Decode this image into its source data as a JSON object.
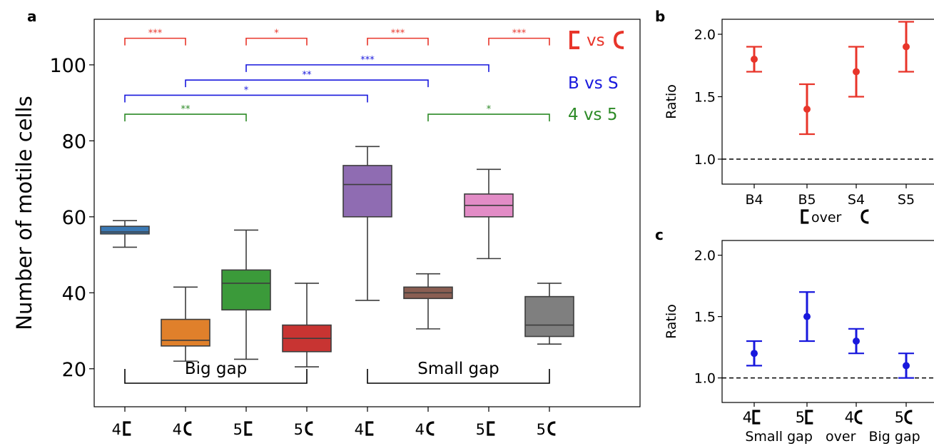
{
  "colors": {
    "shape_cmp": "#e8352a",
    "gap_cmp": "#1818dd",
    "size_cmp": "#2c8a26",
    "box_fills": [
      "#3b79b4",
      "#e0802b",
      "#3b9a3a",
      "#c83432",
      "#8f6cb2",
      "#8a5e52",
      "#e28cc6",
      "#7f7f7f"
    ]
  },
  "panel_labels": {
    "a": "a",
    "b": "b",
    "c": "c"
  },
  "chart_data": [
    {
      "type": "box",
      "panel": "a",
      "ylabel": "Number of motile cells",
      "ylim": [
        10,
        112
      ],
      "yticks": [
        20,
        40,
        60,
        80,
        100
      ],
      "categories": [
        {
          "num": "4",
          "shape": "bracket"
        },
        {
          "num": "4",
          "shape": "c"
        },
        {
          "num": "5",
          "shape": "bracket"
        },
        {
          "num": "5",
          "shape": "c"
        },
        {
          "num": "4",
          "shape": "bracket"
        },
        {
          "num": "4",
          "shape": "c"
        },
        {
          "num": "5",
          "shape": "bracket"
        },
        {
          "num": "5",
          "shape": "c"
        }
      ],
      "boxes": [
        {
          "whislo": 52,
          "q1": 55.5,
          "med": 56,
          "q3": 57.5,
          "whishi": 59
        },
        {
          "whislo": 22,
          "q1": 26,
          "med": 27.5,
          "q3": 33,
          "whishi": 41.5
        },
        {
          "whislo": 22.5,
          "q1": 35.5,
          "med": 42.5,
          "q3": 46,
          "whishi": 56.5
        },
        {
          "whislo": 20.5,
          "q1": 24.5,
          "med": 28,
          "q3": 31.5,
          "whishi": 42.5
        },
        {
          "whislo": 38,
          "q1": 60,
          "med": 68.5,
          "q3": 73.5,
          "whishi": 78.5
        },
        {
          "whislo": 30.5,
          "q1": 38.5,
          "med": 40,
          "q3": 41.5,
          "whishi": 45
        },
        {
          "whislo": 49,
          "q1": 60,
          "med": 63,
          "q3": 66,
          "whishi": 72.5
        },
        {
          "whislo": 26.5,
          "q1": 28.5,
          "med": 31.5,
          "q3": 39,
          "whishi": 42.5
        }
      ],
      "group_labels": [
        {
          "label": "Big gap",
          "from": 0,
          "to": 3
        },
        {
          "label": "Small gap",
          "from": 4,
          "to": 7
        }
      ],
      "significance": [
        {
          "from": 0,
          "to": 1,
          "y": 107,
          "stars": "***",
          "color": "shape_cmp"
        },
        {
          "from": 2,
          "to": 3,
          "y": 107,
          "stars": "*",
          "color": "shape_cmp"
        },
        {
          "from": 4,
          "to": 5,
          "y": 107,
          "stars": "***",
          "color": "shape_cmp"
        },
        {
          "from": 6,
          "to": 7,
          "y": 107,
          "stars": "***",
          "color": "shape_cmp"
        },
        {
          "from": 2,
          "to": 6,
          "y": 100,
          "stars": "***",
          "color": "gap_cmp"
        },
        {
          "from": 1,
          "to": 5,
          "y": 96,
          "stars": "**",
          "color": "gap_cmp"
        },
        {
          "from": 0,
          "to": 4,
          "y": 92,
          "stars": "*",
          "color": "gap_cmp"
        },
        {
          "from": 0,
          "to": 2,
          "y": 87,
          "stars": "**",
          "color": "size_cmp"
        },
        {
          "from": 5,
          "to": 7,
          "y": 87,
          "stars": "*",
          "color": "size_cmp"
        }
      ],
      "legend": {
        "shape_vs": "vs",
        "gap": "B vs S",
        "size": "4 vs 5"
      }
    },
    {
      "type": "errorbar",
      "panel": "b",
      "ylabel": "Ratio",
      "ylim": [
        0.8,
        2.12
      ],
      "yticks": [
        1.0,
        1.5,
        2.0
      ],
      "ytick_labels": [
        "1.0",
        "1.5",
        "2.0"
      ],
      "categories": [
        "B4",
        "B5",
        "S4",
        "S5"
      ],
      "values": [
        1.8,
        1.4,
        1.7,
        1.9
      ],
      "err_low": [
        1.7,
        1.2,
        1.5,
        1.7
      ],
      "err_high": [
        1.9,
        1.6,
        1.9,
        2.1
      ],
      "reference_line": 1.0,
      "color": "shape_cmp",
      "xlabel_word": "over"
    },
    {
      "type": "errorbar",
      "panel": "c",
      "ylabel": "Ratio",
      "ylim": [
        0.8,
        2.12
      ],
      "yticks": [
        1.0,
        1.5,
        2.0
      ],
      "ytick_labels": [
        "1.0",
        "1.5",
        "2.0"
      ],
      "categories": [
        {
          "num": "4",
          "shape": "bracket"
        },
        {
          "num": "5",
          "shape": "bracket"
        },
        {
          "num": "4",
          "shape": "c"
        },
        {
          "num": "5",
          "shape": "c"
        }
      ],
      "values": [
        1.2,
        1.5,
        1.3,
        1.1
      ],
      "err_low": [
        1.1,
        1.3,
        1.2,
        1.0
      ],
      "err_high": [
        1.3,
        1.7,
        1.4,
        1.2
      ],
      "reference_line": 1.0,
      "color": "gap_cmp",
      "xlabel": "Small gap   over   Big gap"
    }
  ]
}
